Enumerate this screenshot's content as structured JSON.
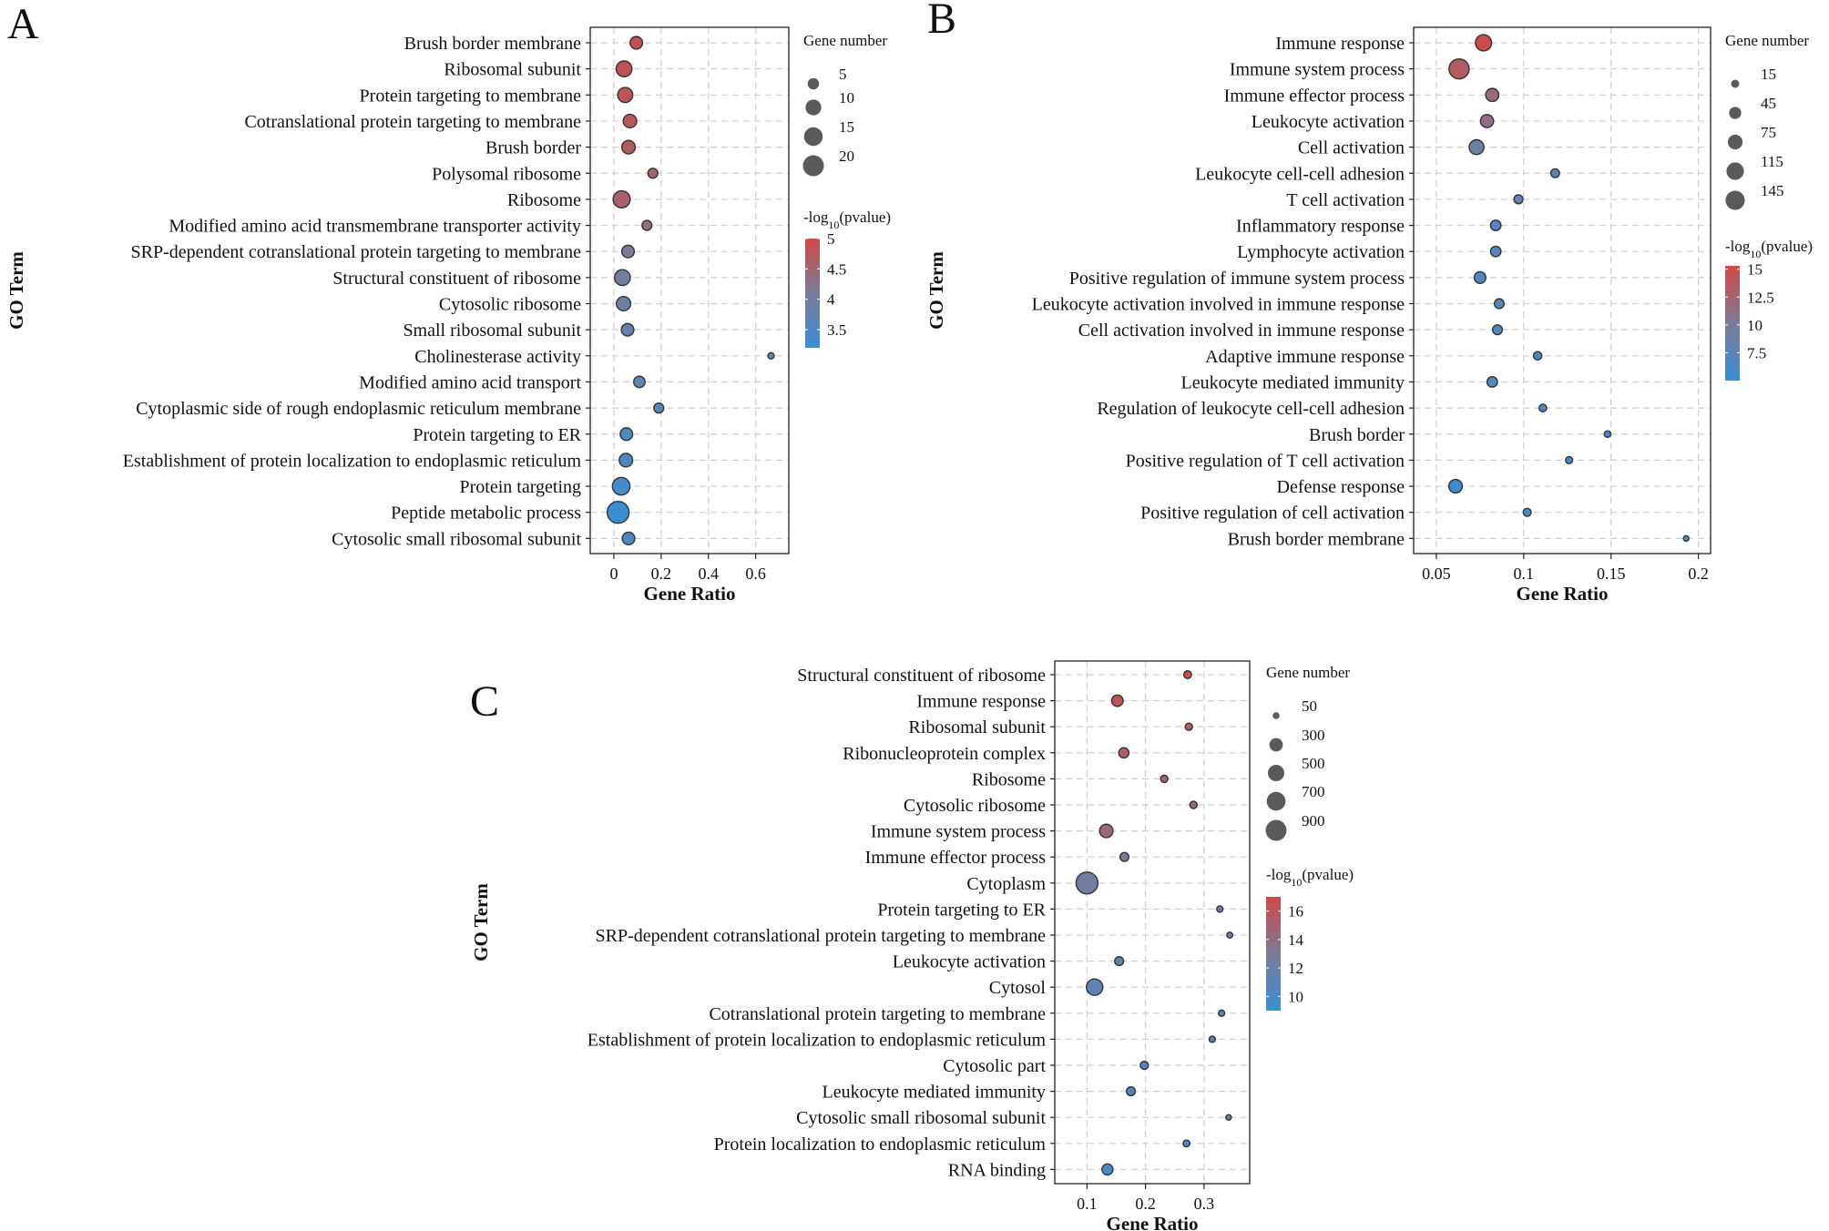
{
  "chart_data": [
    {
      "type": "scatter",
      "panel": "A",
      "ylabel": "GO Term",
      "xlabel": "Gene Ratio",
      "xlim": [
        -0.1,
        0.74
      ],
      "xticks": [
        0,
        0.2,
        0.4,
        0.6
      ],
      "xtick_labels": [
        "0",
        "0.2",
        "0.4",
        "0.6"
      ],
      "size_legend": {
        "title": "Gene number",
        "values": [
          5,
          10,
          15,
          20
        ],
        "labels": [
          "5",
          "10",
          "15",
          "20"
        ],
        "min": 3,
        "max": 22
      },
      "color_legend": {
        "title_prefix": "-log",
        "title_sub": "10",
        "title_suffix": "(pvalue)",
        "min": 3.2,
        "max": 5,
        "ticks": [
          5,
          4.5,
          4,
          3.5
        ],
        "tick_labels": [
          "5",
          "4.5",
          "4",
          "3.5"
        ]
      },
      "terms": [
        {
          "label": "Brush border membrane",
          "x": 0.095,
          "size": 6,
          "color": 4.9
        },
        {
          "label": "Ribosomal subunit",
          "x": 0.043,
          "size": 10,
          "color": 4.85
        },
        {
          "label": "Protein targeting to membrane",
          "x": 0.048,
          "size": 9,
          "color": 4.8
        },
        {
          "label": "Cotranslational protein targeting to membrane",
          "x": 0.068,
          "size": 7,
          "color": 4.75
        },
        {
          "label": "Brush border",
          "x": 0.062,
          "size": 7,
          "color": 4.7
        },
        {
          "label": "Polysomal ribosome",
          "x": 0.165,
          "size": 4,
          "color": 4.6
        },
        {
          "label": "Ribosome",
          "x": 0.033,
          "size": 12,
          "color": 4.6
        },
        {
          "label": "Modified amino acid transmembrane transporter activity",
          "x": 0.14,
          "size": 4,
          "color": 4.35
        },
        {
          "label": "SRP-dependent cotranslational protein targeting to membrane",
          "x": 0.06,
          "size": 6,
          "color": 4.1
        },
        {
          "label": "Structural constituent of ribosome",
          "x": 0.036,
          "size": 10,
          "color": 3.95
        },
        {
          "label": "Cytosolic ribosome",
          "x": 0.041,
          "size": 8,
          "color": 3.9
        },
        {
          "label": "Small ribosomal subunit",
          "x": 0.058,
          "size": 6,
          "color": 3.8
        },
        {
          "label": "Cholinesterase activity",
          "x": 0.665,
          "size": 3,
          "color": 3.75
        },
        {
          "label": "Modified amino acid transport",
          "x": 0.108,
          "size": 5,
          "color": 3.65
        },
        {
          "label": "Cytoplasmic side of rough endoplasmic reticulum membrane",
          "x": 0.19,
          "size": 4,
          "color": 3.55
        },
        {
          "label": "Protein targeting to ER",
          "x": 0.053,
          "size": 6,
          "color": 3.5
        },
        {
          "label": "Establishment of protein localization to endoplasmic reticulum",
          "x": 0.051,
          "size": 7,
          "color": 3.45
        },
        {
          "label": "Protein targeting",
          "x": 0.031,
          "size": 13,
          "color": 3.35
        },
        {
          "label": "Peptide metabolic process",
          "x": 0.018,
          "size": 22,
          "color": 3.2
        },
        {
          "label": "Cytosolic small ribosomal subunit",
          "x": 0.062,
          "size": 6,
          "color": 3.45
        }
      ]
    },
    {
      "type": "scatter",
      "panel": "B",
      "ylabel": "GO Term",
      "xlabel": "Gene Ratio",
      "xlim": [
        0.037,
        0.207
      ],
      "xticks": [
        0.05,
        0.1,
        0.15,
        0.2
      ],
      "xtick_labels": [
        "0.05",
        "0.1",
        "0.15",
        "0.2"
      ],
      "size_legend": {
        "title": "Gene number",
        "values": [
          15,
          45,
          75,
          115,
          145
        ],
        "labels": [
          "15",
          "45",
          "75",
          "115",
          "145"
        ],
        "min": 3,
        "max": 160
      },
      "color_legend": {
        "title_prefix": "-log",
        "title_sub": "10",
        "title_suffix": "(pvalue)",
        "min": 5,
        "max": 15.3,
        "ticks": [
          15,
          12.5,
          10,
          7.5
        ],
        "tick_labels": [
          "15",
          "12.5",
          "10",
          "7.5"
        ]
      },
      "terms": [
        {
          "label": "Immune response",
          "x": 0.077,
          "size": 95,
          "color": 15
        },
        {
          "label": "Immune system process",
          "x": 0.063,
          "size": 160,
          "color": 13.5
        },
        {
          "label": "Immune effector process",
          "x": 0.082,
          "size": 55,
          "color": 12
        },
        {
          "label": "Leukocyte activation",
          "x": 0.079,
          "size": 55,
          "color": 11.5
        },
        {
          "label": "Cell activation",
          "x": 0.073,
          "size": 75,
          "color": 9
        },
        {
          "label": "Leukocyte cell-cell adhesion",
          "x": 0.118,
          "size": 18,
          "color": 7.8
        },
        {
          "label": "T cell activation",
          "x": 0.097,
          "size": 20,
          "color": 7.5
        },
        {
          "label": "Inflammatory response",
          "x": 0.084,
          "size": 30,
          "color": 7
        },
        {
          "label": "Lymphocyte activation",
          "x": 0.084,
          "size": 30,
          "color": 7
        },
        {
          "label": "Positive regulation of immune system process",
          "x": 0.075,
          "size": 40,
          "color": 6.8
        },
        {
          "label": "Leukocyte activation involved in immune response",
          "x": 0.086,
          "size": 25,
          "color": 6.6
        },
        {
          "label": "Cell activation involved in immune response",
          "x": 0.085,
          "size": 25,
          "color": 6.6
        },
        {
          "label": "Adaptive immune response",
          "x": 0.108,
          "size": 16,
          "color": 6.5
        },
        {
          "label": "Leukocyte mediated immunity",
          "x": 0.082,
          "size": 30,
          "color": 6.5
        },
        {
          "label": "Regulation of leukocyte cell-cell adhesion",
          "x": 0.111,
          "size": 12,
          "color": 6.3
        },
        {
          "label": "Brush border",
          "x": 0.148,
          "size": 8,
          "color": 6.2
        },
        {
          "label": "Positive regulation of T cell activation",
          "x": 0.126,
          "size": 10,
          "color": 6.1
        },
        {
          "label": "Defense response",
          "x": 0.061,
          "size": 60,
          "color": 5.5
        },
        {
          "label": "Positive regulation of cell activation",
          "x": 0.102,
          "size": 14,
          "color": 6
        },
        {
          "label": "Brush border membrane",
          "x": 0.193,
          "size": 5,
          "color": 6.1
        }
      ]
    },
    {
      "type": "scatter",
      "panel": "C",
      "ylabel": "GO Term",
      "xlabel": "Gene Ratio",
      "xlim": [
        0.045,
        0.378
      ],
      "xticks": [
        0.1,
        0.2,
        0.3
      ],
      "xtick_labels": [
        "0.1",
        "0.2",
        "0.3"
      ],
      "size_legend": {
        "title": "Gene number",
        "values": [
          50,
          300,
          500,
          700,
          900
        ],
        "labels": [
          "50",
          "300",
          "500",
          "700",
          "900"
        ],
        "min": 20,
        "max": 1000
      },
      "color_legend": {
        "title_prefix": "-log",
        "title_sub": "10",
        "title_suffix": "(pvalue)",
        "min": 9,
        "max": 17,
        "ticks": [
          16,
          14,
          12,
          10
        ],
        "tick_labels": [
          "16",
          "14",
          "12",
          "10"
        ]
      },
      "terms": [
        {
          "label": "Structural constituent of ribosome",
          "x": 0.272,
          "size": 70,
          "color": 16.8
        },
        {
          "label": "Immune response",
          "x": 0.152,
          "size": 200,
          "color": 16.3
        },
        {
          "label": "Ribosomal subunit",
          "x": 0.274,
          "size": 60,
          "color": 15.8
        },
        {
          "label": "Ribonucleoprotein complex",
          "x": 0.163,
          "size": 150,
          "color": 15.5
        },
        {
          "label": "Ribosome",
          "x": 0.232,
          "size": 60,
          "color": 15.2
        },
        {
          "label": "Cytosolic ribosome",
          "x": 0.282,
          "size": 60,
          "color": 14.5
        },
        {
          "label": "Immune system process",
          "x": 0.133,
          "size": 300,
          "color": 14.5
        },
        {
          "label": "Immune effector process",
          "x": 0.164,
          "size": 100,
          "color": 13.5
        },
        {
          "label": "Cytoplasm",
          "x": 0.1,
          "size": 1000,
          "color": 12.3
        },
        {
          "label": "Protein targeting to ER",
          "x": 0.327,
          "size": 40,
          "color": 12.2
        },
        {
          "label": "SRP-dependent cotranslational protein targeting to membrane",
          "x": 0.344,
          "size": 35,
          "color": 12
        },
        {
          "label": "Leukocyte activation",
          "x": 0.155,
          "size": 100,
          "color": 11.5
        },
        {
          "label": "Cytosol",
          "x": 0.113,
          "size": 500,
          "color": 11.3
        },
        {
          "label": "Cotranslational protein targeting to membrane",
          "x": 0.33,
          "size": 40,
          "color": 11.3
        },
        {
          "label": "Establishment of protein localization to endoplasmic reticulum",
          "x": 0.314,
          "size": 40,
          "color": 11
        },
        {
          "label": "Cytosolic part",
          "x": 0.198,
          "size": 80,
          "color": 10.8
        },
        {
          "label": "Leukocyte mediated immunity",
          "x": 0.175,
          "size": 100,
          "color": 10.3
        },
        {
          "label": "Cytosolic small ribosomal subunit",
          "x": 0.342,
          "size": 30,
          "color": 10.3
        },
        {
          "label": "Protein localization to endoplasmic reticulum",
          "x": 0.27,
          "size": 50,
          "color": 10.2
        },
        {
          "label": "RNA binding",
          "x": 0.135,
          "size": 180,
          "color": 9.6
        }
      ]
    }
  ],
  "colors": {
    "high": "#cf4a46",
    "mid": "#7b7b98",
    "low": "#3a8ed4",
    "legend_dot": "#5a5a5a",
    "frame": "#222222",
    "grid": "#cfcfcf"
  }
}
